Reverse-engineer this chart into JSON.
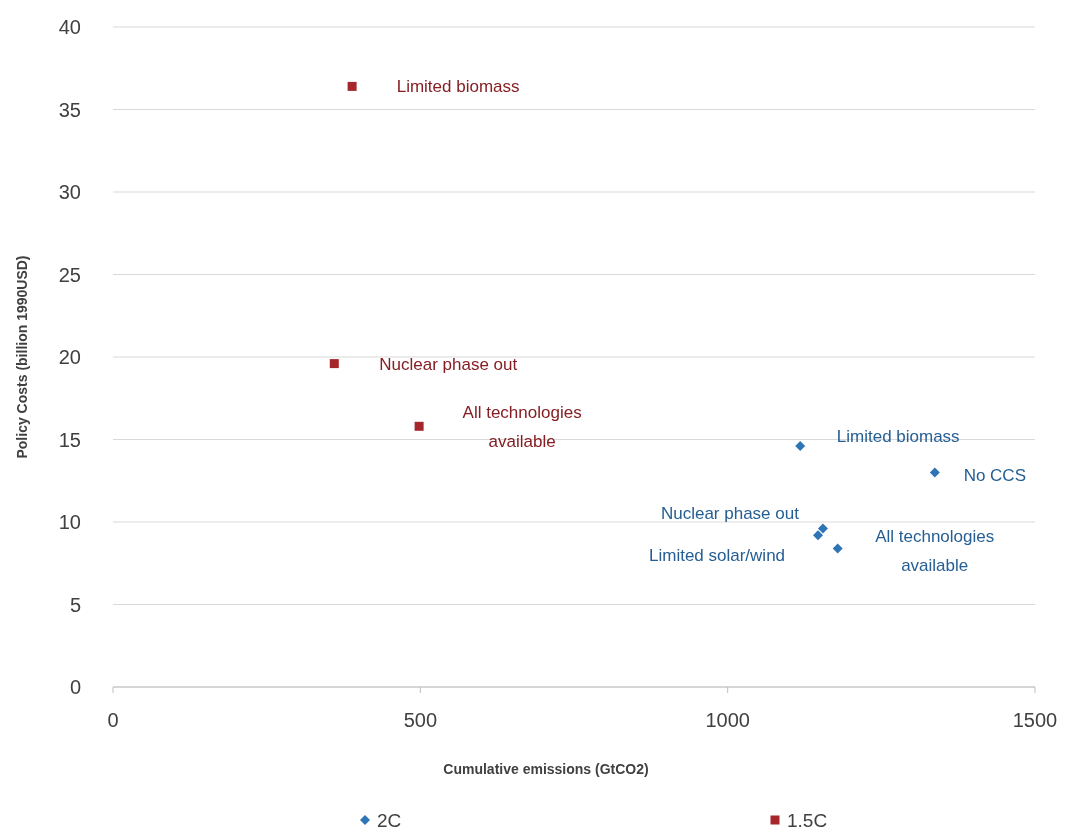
{
  "chart_data": {
    "type": "scatter",
    "xlabel": "Cumulative emissions (GtCO2)",
    "ylabel": "Policy Costs (billion 1990USD)",
    "xlim": [
      0,
      1500
    ],
    "xticks": [
      0,
      500,
      1000,
      1500
    ],
    "ylim": [
      0,
      40
    ],
    "yticks": [
      0,
      5,
      10,
      15,
      20,
      25,
      30,
      35,
      40
    ],
    "grid": "y",
    "legend": "bottom",
    "series": [
      {
        "name": "2C",
        "color": "#2e75b6",
        "marker": "diamond",
        "x": [
          1118,
          1337,
          1155,
          1147,
          1179
        ],
        "values": [
          14.6,
          13.0,
          9.6,
          9.2,
          8.4
        ]
      },
      {
        "name": "1.5C",
        "color": "#a5262b",
        "marker": "square",
        "x": [
          389,
          360,
          498
        ],
        "values": [
          36.4,
          19.6,
          15.8
        ]
      }
    ],
    "annotations": [
      {
        "text": "Limited biomass",
        "x": 389,
        "y": 36.4
      },
      {
        "text": "Nuclear phase out",
        "x": 360,
        "y": 19.6
      },
      {
        "text": "All technologies\navailable",
        "x": 498,
        "y": 15.8
      },
      {
        "text": "Limited biomass",
        "x": 1118,
        "y": 14.6
      },
      {
        "text": "No CCS",
        "x": 1337,
        "y": 13.0
      },
      {
        "text": "Nuclear phase out",
        "x": 1155,
        "y": 9.6
      },
      {
        "text": "Limited solar/wind",
        "x": 1147,
        "y": 9.2
      },
      {
        "text": "All technologies\navailable",
        "x": 1179,
        "y": 8.4
      }
    ]
  }
}
